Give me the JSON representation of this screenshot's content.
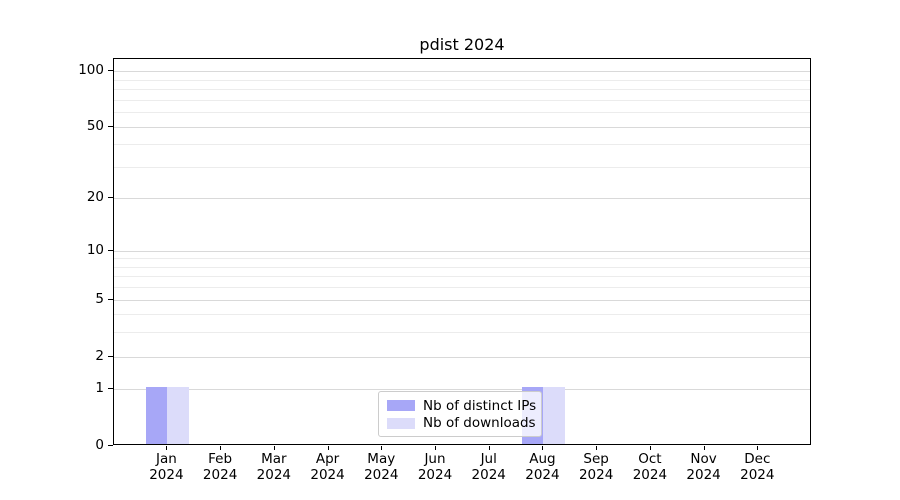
{
  "chart_data": {
    "type": "bar",
    "title": "pdist 2024",
    "categories": [
      "Jan 2024",
      "Feb 2024",
      "Mar 2024",
      "Apr 2024",
      "May 2024",
      "Jun 2024",
      "Jul 2024",
      "Aug 2024",
      "Sep 2024",
      "Oct 2024",
      "Nov 2024",
      "Dec 2024"
    ],
    "series": [
      {
        "name": "Nb of distinct IPs",
        "color": "#a7a7f7",
        "values": [
          1,
          0,
          0,
          0,
          0,
          0,
          0,
          1,
          0,
          0,
          0,
          0
        ]
      },
      {
        "name": "Nb of downloads",
        "color": "#dcdcfa",
        "values": [
          1,
          0,
          0,
          0,
          0,
          0,
          0,
          1,
          0,
          0,
          0,
          0
        ]
      }
    ],
    "xlabel": "",
    "ylabel": "",
    "yticks": [
      0,
      1,
      2,
      5,
      10,
      20,
      50,
      100
    ],
    "yminorticks": [
      3,
      4,
      6,
      7,
      8,
      9,
      30,
      40,
      60,
      70,
      80,
      90
    ],
    "ylim": [
      0,
      117
    ],
    "yscale": "symlog",
    "grid": "horizontal major+minor",
    "legend_position": "bottom-center"
  }
}
